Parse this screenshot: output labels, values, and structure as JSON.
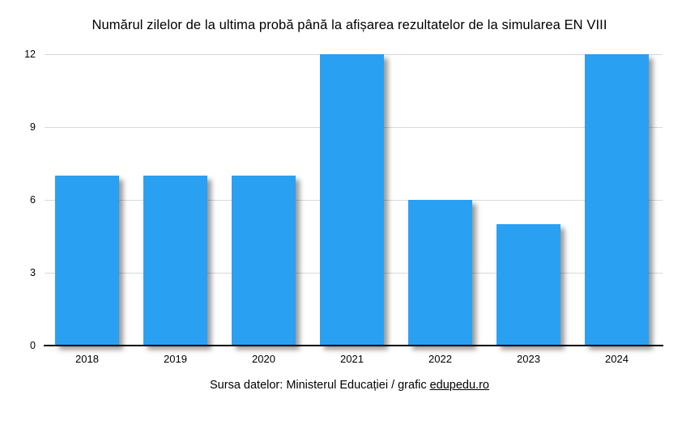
{
  "chart_data": {
    "type": "bar",
    "title": "Numărul zilelor de la ultima probă până la afișarea rezultatelor de la simularea EN VIII",
    "categories": [
      "2018",
      "2019",
      "2020",
      "2021",
      "2022",
      "2023",
      "2024"
    ],
    "values": [
      7,
      7,
      7,
      12,
      6,
      5,
      12
    ],
    "xlabel": "",
    "ylabel": "",
    "ylim": [
      0,
      12
    ],
    "yticks": [
      0,
      3,
      6,
      9,
      12
    ],
    "grid": true,
    "legend": "none",
    "bar_color": "#2AA0F2",
    "gridline_color": "#d9d9d9",
    "axis_color": "#000000"
  },
  "footer": {
    "source_text": "Sursa datelor: Ministerul Educației / grafic ",
    "link_text": "edupedu.ro"
  }
}
